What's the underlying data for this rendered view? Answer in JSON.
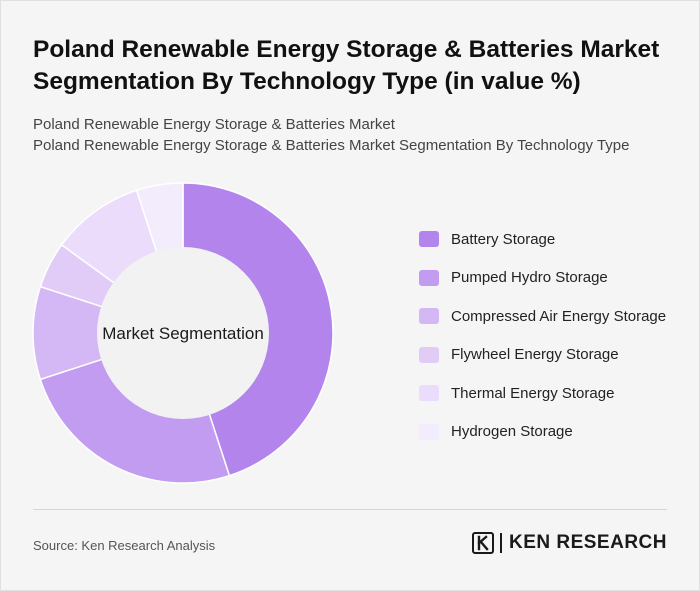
{
  "header": {
    "title": "Poland Renewable Energy Storage & Batteries Market Segmentation By Technology Type (in value %)",
    "subtitle_line1": "Poland Renewable Energy Storage & Batteries Market",
    "subtitle_line2": "Poland Renewable Energy Storage & Batteries Market Segmentation By Technology Type"
  },
  "chart_data": {
    "type": "pie",
    "variant": "donut",
    "center_label": "Market Segmentation",
    "legend_position": "right",
    "categories": [
      "Battery Storage",
      "Pumped Hydro Storage",
      "Compressed Air Energy Storage",
      "Flywheel Energy Storage",
      "Thermal Energy Storage",
      "Hydrogen Storage"
    ],
    "values": [
      45,
      25,
      10,
      5,
      10,
      5
    ],
    "colors": [
      "#b384ec",
      "#c29cf0",
      "#d4b8f5",
      "#e0ccf7",
      "#eadcfa",
      "#f3ecfc"
    ]
  },
  "footer": {
    "source": "Source: Ken Research Analysis",
    "brand": "KEN RESEARCH",
    "brand_icon": "ken-research-logo-icon"
  }
}
